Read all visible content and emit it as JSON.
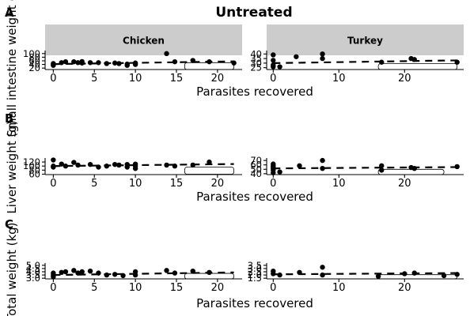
{
  "title": "Untreated",
  "xlabel": "Parasites recovered",
  "chart_data": [
    {
      "type": "scatter",
      "tag": "A",
      "ylabel": "Small intestine weight (g)",
      "facets": [
        {
          "name": "Chicken",
          "xlim": [
            -1,
            23
          ],
          "xticks": [
            0,
            5,
            10,
            15,
            20
          ],
          "ylim": [
            12,
            108
          ],
          "yticks": [
            20,
            40,
            60,
            80,
            100
          ],
          "yticklabels": [
            "20",
            "40",
            "60",
            "80",
            "100"
          ],
          "points": [
            [
              0,
              45
            ],
            [
              0,
              35
            ],
            [
              0,
              40
            ],
            [
              1,
              50
            ],
            [
              1.5,
              55
            ],
            [
              2.5,
              55
            ],
            [
              3,
              50
            ],
            [
              3.5,
              48
            ],
            [
              3.5,
              56
            ],
            [
              4.5,
              50
            ],
            [
              5.5,
              50
            ],
            [
              6.5,
              45
            ],
            [
              7.5,
              48
            ],
            [
              8,
              45
            ],
            [
              9,
              42
            ],
            [
              9,
              35
            ],
            [
              10,
              40
            ],
            [
              10,
              48
            ],
            [
              13.8,
              100
            ],
            [
              14.8,
              55
            ],
            [
              17,
              62
            ],
            [
              19,
              55
            ],
            [
              22,
              48
            ]
          ],
          "trend": {
            "x": [
              0,
              22
            ],
            "y": [
              42,
              57
            ]
          },
          "ci": {
            "x0": 16,
            "x1": 22,
            "top": 50,
            "bottom": 12
          }
        },
        {
          "name": "Turkey",
          "xlim": [
            -1,
            29
          ],
          "xticks": [
            0,
            10,
            20
          ],
          "ylim": [
            23,
            42
          ],
          "yticks": [
            25,
            30,
            35,
            40
          ],
          "yticklabels": [
            "25",
            "30",
            "35",
            "40"
          ],
          "points": [
            [
              0,
              39
            ],
            [
              0,
              33
            ],
            [
              0,
              28
            ],
            [
              0,
              26
            ],
            [
              1,
              26
            ],
            [
              3.5,
              37
            ],
            [
              7.5,
              40
            ],
            [
              7.5,
              35
            ],
            [
              16.5,
              31
            ],
            [
              21,
              35
            ],
            [
              21.5,
              34
            ],
            [
              28,
              31
            ]
          ],
          "trend": {
            "x": [
              0,
              28
            ],
            "y": [
              30,
              33
            ]
          },
          "ci": {
            "x0": 16,
            "x1": 28,
            "top": 29.5,
            "bottom": 23
          }
        }
      ]
    },
    {
      "type": "scatter",
      "tag": "B",
      "ylabel": "Liver weight (g)",
      "facets": [
        {
          "name": "Chicken",
          "xlim": [
            -1,
            23
          ],
          "xticks": [
            0,
            5,
            10,
            15,
            20
          ],
          "ylim": [
            58,
            132
          ],
          "yticks": [
            60,
            80,
            100,
            120
          ],
          "yticklabels": [
            "60",
            "80",
            "100",
            "120"
          ],
          "points": [
            [
              0,
              130
            ],
            [
              0,
              100
            ],
            [
              0,
              95
            ],
            [
              1,
              110
            ],
            [
              1.5,
              100
            ],
            [
              2.5,
              118
            ],
            [
              3,
              105
            ],
            [
              4.5,
              108
            ],
            [
              5.5,
              95
            ],
            [
              6.5,
              100
            ],
            [
              7.5,
              108
            ],
            [
              8,
              105
            ],
            [
              9,
              108
            ],
            [
              9,
              95
            ],
            [
              10,
              100
            ],
            [
              10,
              110
            ],
            [
              10,
              88
            ],
            [
              13.8,
              105
            ],
            [
              14.8,
              100
            ],
            [
              17,
              105
            ],
            [
              19,
              120
            ]
          ],
          "trend": {
            "x": [
              0,
              22
            ],
            "y": [
              100,
              110
            ]
          },
          "ci": {
            "x0": 16,
            "x1": 22,
            "top": 95,
            "bottom": 60
          }
        },
        {
          "name": "Turkey",
          "xlim": [
            -1,
            29
          ],
          "xticks": [
            0,
            10,
            20
          ],
          "ylim": [
            38,
            72
          ],
          "yticks": [
            40,
            50,
            60,
            70
          ],
          "yticklabels": [
            "40",
            "50",
            "60",
            "70"
          ],
          "points": [
            [
              0,
              62
            ],
            [
              0,
              58
            ],
            [
              0,
              55
            ],
            [
              0,
              52
            ],
            [
              0,
              48
            ],
            [
              0,
              42
            ],
            [
              1,
              44
            ],
            [
              4,
              58
            ],
            [
              7.5,
              70
            ],
            [
              7.5,
              52
            ],
            [
              16.5,
              58
            ],
            [
              16.5,
              48
            ],
            [
              21,
              54
            ],
            [
              21.5,
              52
            ],
            [
              28,
              56
            ]
          ],
          "trend": {
            "x": [
              0,
              28
            ],
            "y": [
              52,
              55
            ]
          },
          "ci": {
            "x0": 16,
            "x1": 26,
            "top": 50,
            "bottom": 38
          }
        }
      ]
    },
    {
      "type": "scatter",
      "tag": "C",
      "ylabel": "Total weight (kg)",
      "facets": [
        {
          "name": "Chicken",
          "xlim": [
            -1,
            23
          ],
          "xticks": [
            0,
            5,
            10,
            15,
            20
          ],
          "ylim": [
            2.9,
            5.1
          ],
          "yticks": [
            3.0,
            3.5,
            4.0,
            4.5,
            5.0
          ],
          "yticklabels": [
            "3.0",
            "3.5",
            "4.0",
            "4.5",
            "5.0"
          ],
          "points": [
            [
              0,
              3.8
            ],
            [
              0,
              3.5
            ],
            [
              0,
              3.2
            ],
            [
              1,
              3.9
            ],
            [
              1.5,
              4.0
            ],
            [
              2.5,
              4.2
            ],
            [
              3,
              3.8
            ],
            [
              3.5,
              4.0
            ],
            [
              4.5,
              4.1
            ],
            [
              5.5,
              3.8
            ],
            [
              6.5,
              3.5
            ],
            [
              7.5,
              3.6
            ],
            [
              8.5,
              3.4
            ],
            [
              10,
              3.5
            ],
            [
              10,
              4.0
            ],
            [
              13.8,
              4.2
            ],
            [
              14.8,
              3.8
            ],
            [
              17,
              4.1
            ],
            [
              19,
              3.9
            ]
          ],
          "trend": {
            "x": [
              0,
              22
            ],
            "y": [
              3.5,
              3.9
            ]
          },
          "ci": {
            "x0": 16,
            "x1": 22,
            "top": 3.75,
            "bottom": 2.9
          }
        },
        {
          "name": "Turkey",
          "xlim": [
            -1,
            29
          ],
          "xticks": [
            0,
            10,
            20
          ],
          "ylim": [
            1.4,
            3.6
          ],
          "yticks": [
            1.5,
            2.0,
            2.5,
            3.0,
            3.5
          ],
          "yticklabels": [
            "1.5",
            "2.0",
            "2.5",
            "3.0",
            "3.5"
          ],
          "points": [
            [
              0,
              2.6
            ],
            [
              0,
              2.2
            ],
            [
              1,
              2.0
            ],
            [
              4,
              2.4
            ],
            [
              7.5,
              3.2
            ],
            [
              7.5,
              2.0
            ],
            [
              16,
              1.8
            ],
            [
              20,
              2.2
            ],
            [
              21.5,
              2.3
            ],
            [
              26,
              1.9
            ],
            [
              28,
              2.1
            ]
          ],
          "trend": {
            "x": [
              0,
              28
            ],
            "y": [
              2.1,
              2.3
            ]
          },
          "ci": {
            "x0": 16,
            "x1": 28,
            "top": 2.05,
            "bottom": 1.4
          }
        }
      ]
    }
  ]
}
